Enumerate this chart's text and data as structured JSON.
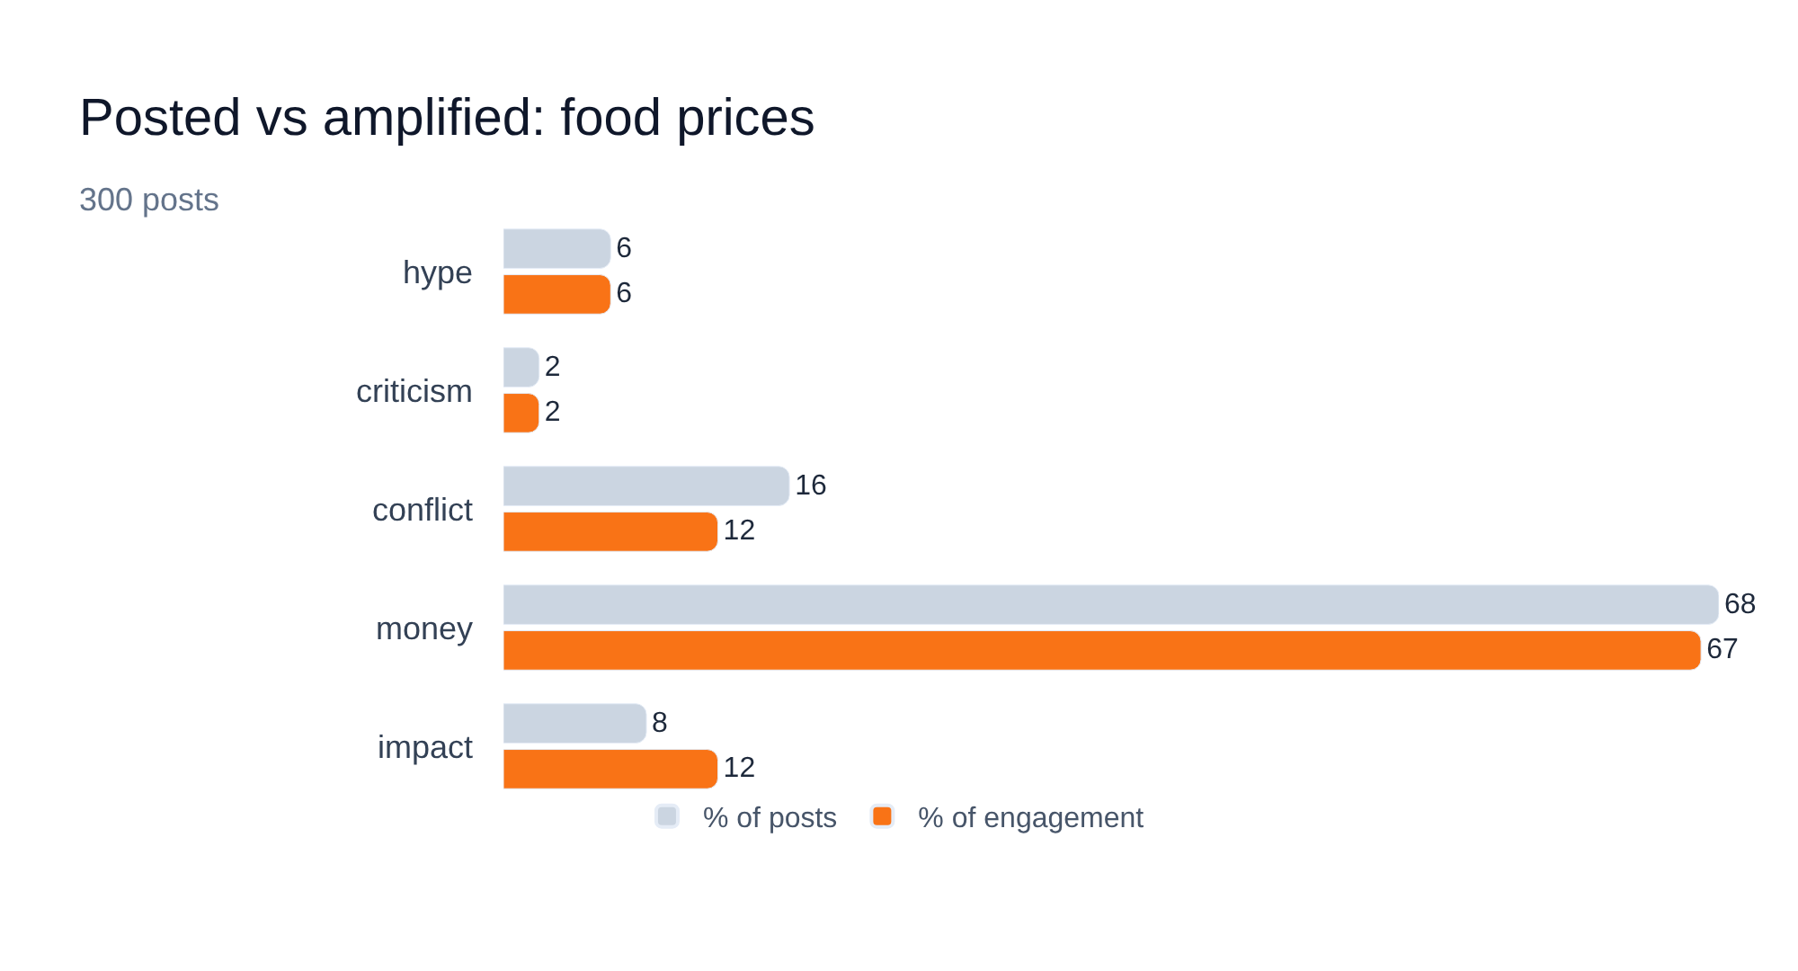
{
  "chart_data": {
    "type": "bar",
    "orientation": "horizontal",
    "title": "Posted vs amplified: food prices",
    "subtitle": "300 posts",
    "categories": [
      "hype",
      "criticism",
      "conflict",
      "money",
      "impact"
    ],
    "series": [
      {
        "name": "% of posts",
        "color": "#cbd5e1",
        "values": [
          6,
          2,
          16,
          68,
          8
        ]
      },
      {
        "name": "% of engagement",
        "color": "#f97316",
        "values": [
          6,
          2,
          12,
          67,
          12
        ]
      }
    ],
    "data_labels": true,
    "legend": "bottom",
    "tick_labels": "y"
  }
}
